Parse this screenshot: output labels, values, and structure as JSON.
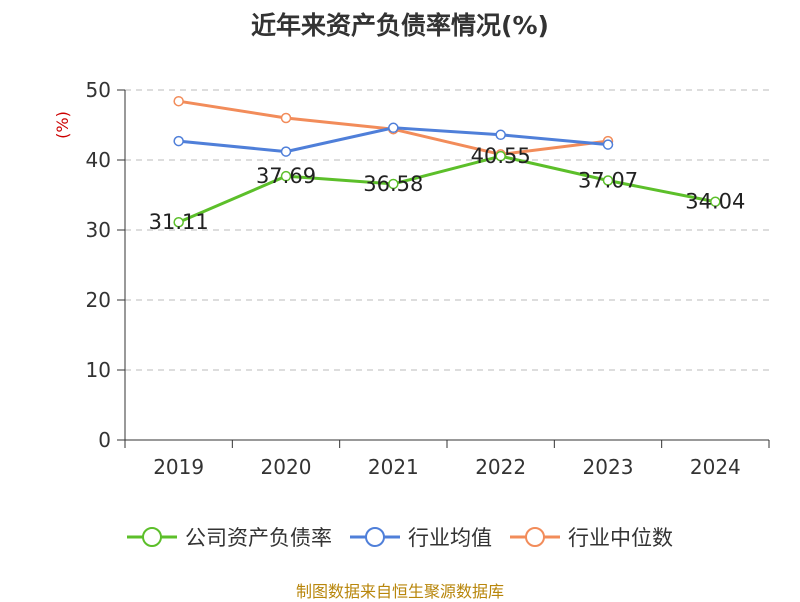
{
  "title": "近年来资产负债率情况(%)",
  "source_note": "制图数据来自恒生聚源数据库",
  "colors": {
    "company": "#5cbf2a",
    "industry_mean": "#4f7fd9",
    "industry_median": "#f28c5a",
    "axis_unit": "#cc0000",
    "grid": "#bbbbbb",
    "axis": "#333333",
    "source": "#b8860b"
  },
  "chart_data": {
    "type": "line",
    "title": "近年来资产负债率情况(%)",
    "ylabel": "(%)",
    "xlabel": "",
    "categories": [
      "2019",
      "2020",
      "2021",
      "2022",
      "2023",
      "2024"
    ],
    "ylim": [
      0,
      50
    ],
    "yticks": [
      0,
      10,
      20,
      30,
      40,
      50
    ],
    "grid": true,
    "legend_position": "bottom",
    "series": [
      {
        "name": "公司资产负债率",
        "color": "#5cbf2a",
        "values": [
          31.11,
          37.69,
          36.58,
          40.55,
          37.07,
          34.04
        ],
        "labels": [
          "31.11",
          "37.69",
          "36.58",
          "40.55",
          "37.07",
          "34.04"
        ]
      },
      {
        "name": "行业均值",
        "color": "#4f7fd9",
        "values": [
          42.7,
          41.2,
          44.6,
          43.6,
          42.2,
          null
        ]
      },
      {
        "name": "行业中位数",
        "color": "#f28c5a",
        "values": [
          48.4,
          46.0,
          44.4,
          40.8,
          42.7,
          null
        ]
      }
    ]
  }
}
